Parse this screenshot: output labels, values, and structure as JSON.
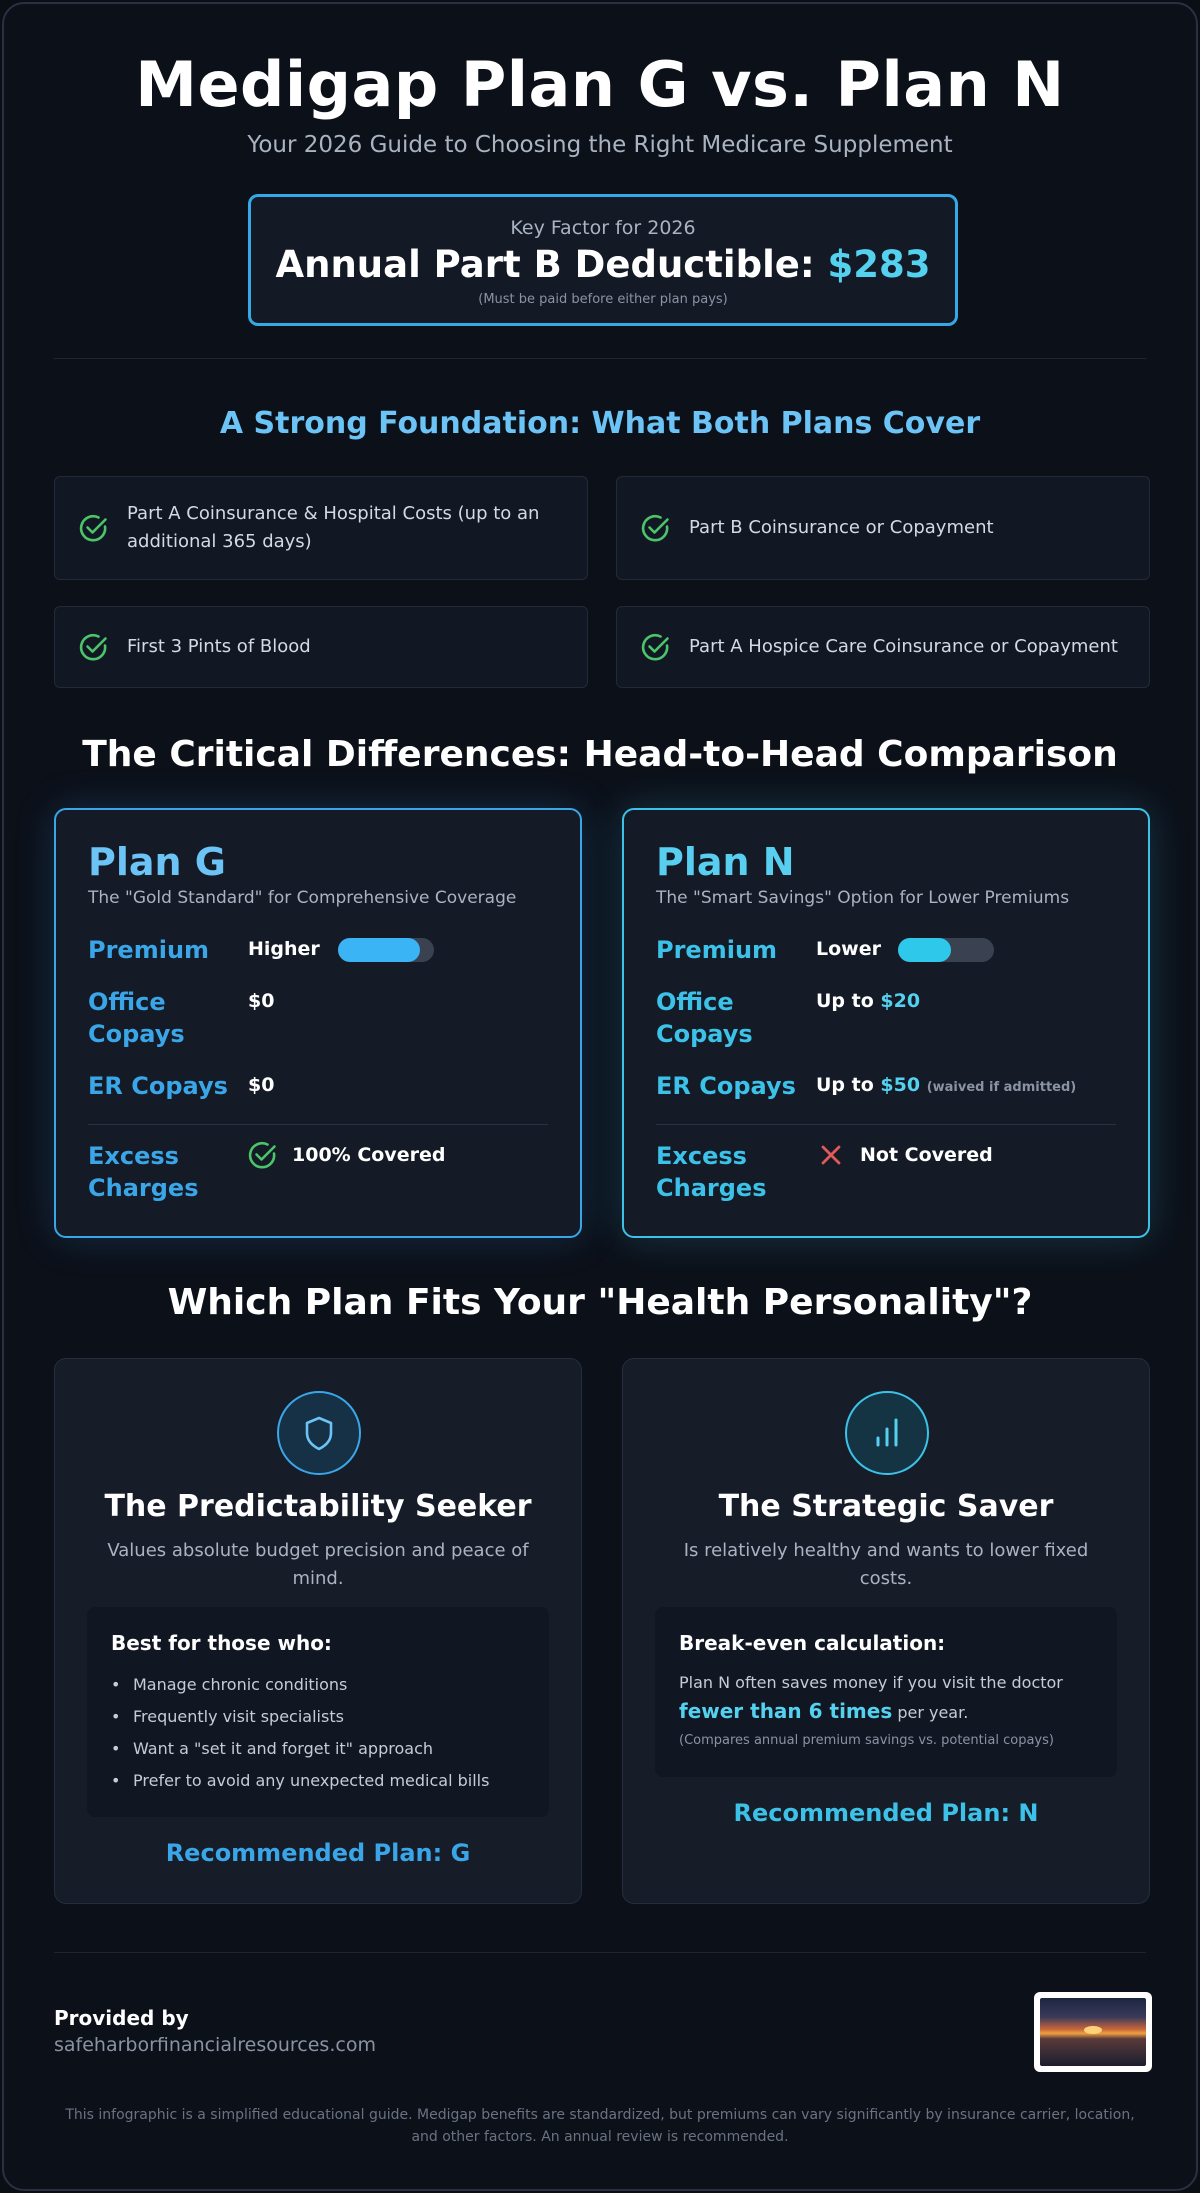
{
  "header": {
    "title": "Medigap Plan G vs. Plan N",
    "subtitle": "Your 2026 Guide to Choosing the Right Medicare Supplement"
  },
  "key_factor": {
    "label": "Key Factor for 2026",
    "headline": "Annual Part B Deductible: ",
    "amount": "$283",
    "note": "(Must be paid before either plan pays)"
  },
  "foundation": {
    "title": "A Strong Foundation: What Both Plans Cover",
    "items": [
      "Part A Coinsurance & Hospital Costs (up to an additional 365 days)",
      "Part B Coinsurance or Copayment",
      "First 3 Pints of Blood",
      "Part A Hospice Care Coinsurance or Copayment"
    ]
  },
  "comparison": {
    "title": "The Critical Differences: Head-to-Head Comparison",
    "plans": [
      {
        "name": "Plan G",
        "description": "The \"Gold Standard\" for Comprehensive Coverage",
        "premium_label": "Premium",
        "premium_value": "Higher",
        "premium_level": 0.85,
        "office_label": "Office Copays",
        "office_prefix": "$0",
        "office_amount": "",
        "er_label": "ER Copays",
        "er_prefix": "$0",
        "er_amount": "",
        "er_note": "",
        "excess_label": "Excess Charges",
        "excess_value": "100% Covered",
        "excess_icon": "check-circle-icon"
      },
      {
        "name": "Plan N",
        "description": "The \"Smart Savings\" Option for Lower Premiums",
        "premium_label": "Premium",
        "premium_value": "Lower",
        "premium_level": 0.55,
        "office_label": "Office Copays",
        "office_prefix": "Up to ",
        "office_amount": "$20",
        "er_label": "ER Copays",
        "er_prefix": "Up to ",
        "er_amount": "$50",
        "er_note": "(waived if admitted)",
        "excess_label": "Excess Charges",
        "excess_value": "Not Covered",
        "excess_icon": "x-icon"
      }
    ]
  },
  "personality": {
    "title": "Which Plan Fits Your \"Health Personality\"?",
    "seeker": {
      "icon": "shield-icon",
      "title": "The Predictability Seeker",
      "description": "Values absolute budget precision and peace of mind.",
      "box_title": "Best for those who:",
      "bullets": [
        "Manage chronic conditions",
        "Frequently visit specialists",
        "Want a \"set it and forget it\" approach",
        "Prefer to avoid any unexpected medical bills"
      ],
      "recommended": "Recommended Plan: G"
    },
    "saver": {
      "icon": "bar-chart-icon",
      "title": "The Strategic Saver",
      "description": "Is relatively healthy and wants to lower fixed costs.",
      "box_title": "Break-even calculation:",
      "text_before": "Plan N often saves money if you visit the doctor ",
      "text_strong": "fewer than 6 times",
      "text_after": " per year.",
      "note": "(Compares annual premium savings vs. potential copays)",
      "recommended": "Recommended Plan: N"
    }
  },
  "footer": {
    "provided_by": "Provided by",
    "site": "safeharborfinancialresources.com",
    "disclaimer": "This infographic is a simplified educational guide. Medigap benefits are standardized, but premiums can vary significantly by insurance carrier, location, and other factors. An annual review is recommended."
  },
  "colors": {
    "accent_blue": "#3aa6e8",
    "accent_cyan": "#3cc2e8",
    "check_green": "#4cc46a",
    "x_red": "#e05a5a",
    "background": "#0c1019"
  }
}
